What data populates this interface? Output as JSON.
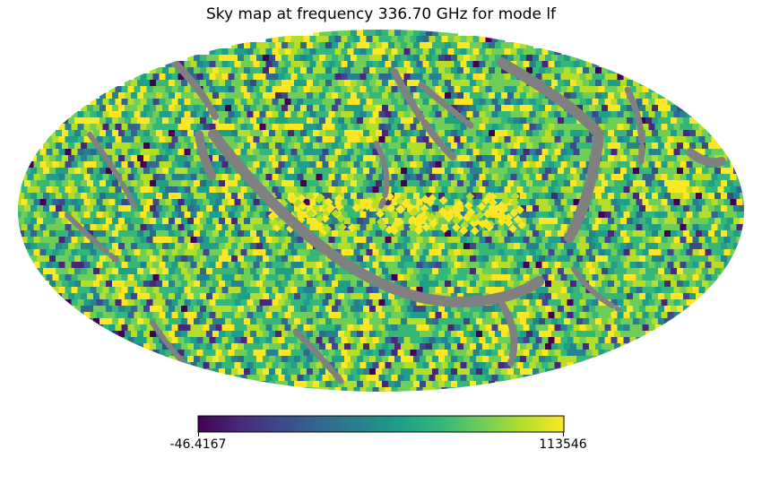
{
  "chart_data": {
    "type": "heatmap",
    "projection": "mollweide",
    "title": "Sky map at frequency 336.70 GHz for mode lf",
    "colormap": "viridis",
    "colorbar": {
      "min_label": "-46.4167",
      "max_label": "113546",
      "min": -46.4167,
      "max": 113546,
      "orientation": "horizontal"
    },
    "masked_color": "#808080",
    "viridis_stops": [
      "#440154",
      "#482878",
      "#3e4989",
      "#31688e",
      "#26828e",
      "#1f9e89",
      "#35b779",
      "#6ece58",
      "#b5de2b",
      "#fde725"
    ],
    "cmap_sample_weights": [
      1,
      2,
      3,
      4,
      6,
      10,
      16,
      18,
      14,
      12
    ]
  }
}
